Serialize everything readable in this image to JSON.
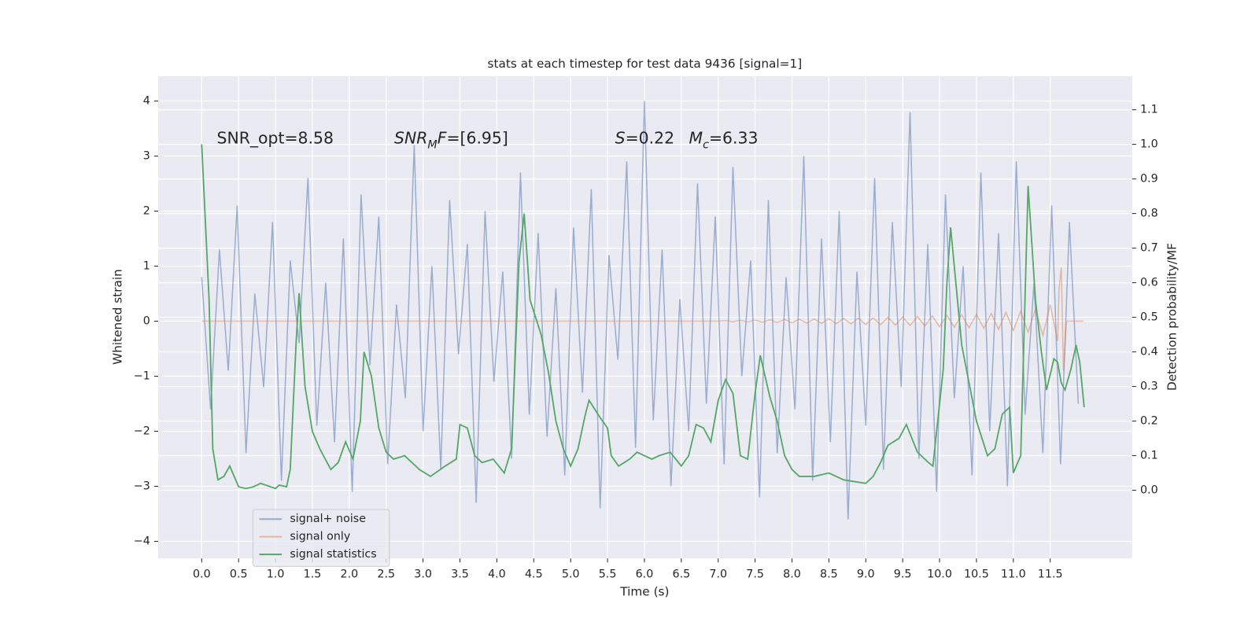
{
  "chart_data": {
    "type": "line",
    "title": "stats at each timestep for test data 9436 [signal=1]",
    "xlabel": "Time (s)",
    "ylabel": "Whitened strain",
    "y2label": "Detection probability/MF",
    "annotations": [
      [
        {
          "text": "SNR_opt=8.58"
        }
      ],
      [
        {
          "text": "SNR",
          "italic": true
        },
        {
          "text": "M",
          "italic": true,
          "sub": true
        },
        {
          "text": "F",
          "italic": true
        },
        {
          "text": "=[6.95]"
        }
      ],
      [
        {
          "text": "S",
          "italic": true
        },
        {
          "text": "=0.22"
        }
      ],
      [
        {
          "text": "M",
          "italic": true
        },
        {
          "text": "c",
          "italic": true,
          "sub": true
        },
        {
          "text": "=6.33"
        }
      ]
    ],
    "xlim": [
      -0.59,
      12.61
    ],
    "ylim": [
      -4.31,
      4.45
    ],
    "y2lim": [
      -0.197,
      1.197
    ],
    "xticks": [
      {
        "value": 0,
        "label": "0.0"
      },
      0.5,
      {
        "value": 1,
        "label": "1.0"
      },
      1.5,
      {
        "value": 2,
        "label": "2.0"
      },
      2.5,
      {
        "value": 3,
        "label": "3.0"
      },
      3.5,
      {
        "value": 4,
        "label": "4.0"
      },
      4.5,
      {
        "value": 5,
        "label": "5.0"
      },
      5.5,
      {
        "value": 6,
        "label": "6.0"
      },
      6.5,
      {
        "value": 7,
        "label": "7.0"
      },
      7.5,
      {
        "value": 8,
        "label": "8.0"
      },
      8.5,
      {
        "value": 9,
        "label": "9.0"
      },
      9.5,
      {
        "value": 10,
        "label": "10.0"
      },
      10.5,
      {
        "value": 11,
        "label": "11.0"
      },
      11.5
    ],
    "yticks": [
      {
        "value": -4,
        "label": "−4"
      },
      {
        "value": -3,
        "label": "−3"
      },
      {
        "value": -2,
        "label": "−2"
      },
      {
        "value": -1,
        "label": "−1"
      },
      0,
      1,
      2,
      3,
      4
    ],
    "y2ticks": [
      {
        "value": 0,
        "label": "0.0"
      },
      0.1,
      0.2,
      0.3,
      0.4,
      0.5,
      0.6,
      0.7,
      0.8,
      0.9,
      {
        "value": 1,
        "label": "1.0"
      },
      1.1
    ],
    "grid": true,
    "legend": "lower left",
    "series": [
      {
        "name": "signal+ noise",
        "color": "#4c72b0",
        "opacity": 0.5,
        "x": [
          0,
          0.12,
          0.24,
          0.36,
          0.48,
          0.6,
          0.72,
          0.84,
          0.96,
          1.08,
          1.2,
          1.32,
          1.44,
          1.56,
          1.68,
          1.8,
          1.92,
          2.04,
          2.16,
          2.28,
          2.4,
          2.52,
          2.64,
          2.76,
          2.88,
          3,
          3.12,
          3.24,
          3.36,
          3.48,
          3.6,
          3.72,
          3.84,
          3.96,
          4.08,
          4.2,
          4.32,
          4.44,
          4.56,
          4.68,
          4.8,
          4.92,
          5.04,
          5.16,
          5.28,
          5.4,
          5.52,
          5.64,
          5.76,
          5.88,
          6,
          6.12,
          6.24,
          6.36,
          6.48,
          6.6,
          6.72,
          6.84,
          6.96,
          7.08,
          7.2,
          7.32,
          7.44,
          7.56,
          7.68,
          7.8,
          7.92,
          8.04,
          8.16,
          8.28,
          8.4,
          8.52,
          8.64,
          8.76,
          8.88,
          9,
          9.12,
          9.24,
          9.36,
          9.48,
          9.6,
          9.72,
          9.84,
          9.96,
          10.08,
          10.2,
          10.32,
          10.44,
          10.56,
          10.68,
          10.8,
          10.92,
          11.04,
          11.16,
          11.28,
          11.4,
          11.52,
          11.64,
          11.76,
          11.88
        ],
        "values": [
          0.8,
          -1.6,
          1.3,
          -0.9,
          2.1,
          -2.4,
          0.5,
          -1.2,
          1.8,
          -2.9,
          1.1,
          -0.4,
          2.6,
          -1.9,
          0.7,
          -2.2,
          1.5,
          -3.1,
          2.3,
          -0.8,
          1.9,
          -2.6,
          0.3,
          -1.4,
          3.2,
          -2.0,
          1.0,
          -2.7,
          2.2,
          -0.6,
          1.4,
          -3.3,
          2.0,
          -1.1,
          0.9,
          -2.5,
          2.7,
          -1.7,
          1.6,
          -2.1,
          0.6,
          -2.8,
          1.7,
          -1.3,
          2.4,
          -3.4,
          1.2,
          -0.7,
          2.9,
          -2.3,
          4.0,
          -1.8,
          1.3,
          -3.0,
          0.4,
          -2.0,
          2.5,
          -1.5,
          1.9,
          -2.6,
          2.8,
          -1.0,
          1.1,
          -3.2,
          2.2,
          -2.4,
          0.8,
          -1.6,
          3.0,
          -2.9,
          1.5,
          -2.2,
          2.0,
          -3.6,
          0.9,
          -1.9,
          2.6,
          -2.7,
          1.8,
          -1.2,
          3.8,
          -2.5,
          1.4,
          -3.1,
          2.3,
          -1.4,
          1.0,
          -2.8,
          2.7,
          -2.0,
          1.6,
          -3.0,
          2.9,
          -1.7,
          0.7,
          -2.4,
          2.1,
          -2.6,
          1.8,
          -1.5
        ]
      },
      {
        "name": "signal only",
        "color": "#dd8452",
        "opacity": 0.5,
        "x": [
          0,
          7.0,
          7.1,
          7.2,
          7.3,
          7.4,
          7.5,
          7.6,
          7.7,
          7.8,
          7.9,
          8.0,
          8.1,
          8.2,
          8.3,
          8.4,
          8.5,
          8.6,
          8.7,
          8.8,
          8.9,
          9.0,
          9.1,
          9.2,
          9.3,
          9.4,
          9.5,
          9.6,
          9.7,
          9.8,
          9.9,
          10.0,
          10.1,
          10.2,
          10.3,
          10.4,
          10.5,
          10.6,
          10.7,
          10.8,
          10.9,
          11.0,
          11.1,
          11.2,
          11.3,
          11.4,
          11.5,
          11.6,
          11.62,
          11.65,
          11.68,
          11.72,
          11.95
        ],
        "values": [
          0,
          0,
          0.01,
          -0.01,
          0.015,
          -0.015,
          0.02,
          -0.02,
          0.025,
          -0.025,
          0.03,
          -0.03,
          0.035,
          -0.035,
          0.04,
          -0.04,
          0.045,
          -0.045,
          0.05,
          -0.05,
          0.055,
          -0.06,
          0.06,
          -0.065,
          0.07,
          -0.07,
          0.075,
          -0.08,
          0.085,
          -0.09,
          0.095,
          -0.1,
          0.105,
          -0.11,
          0.115,
          -0.12,
          0.125,
          -0.13,
          0.14,
          -0.15,
          0.16,
          -0.17,
          0.18,
          -0.2,
          0.22,
          -0.26,
          0.3,
          -0.36,
          0.6,
          0.97,
          -0.9,
          0,
          0
        ]
      },
      {
        "name": "signal statistics",
        "color": "#55a868",
        "opacity": 1,
        "axis": "y2",
        "x": [
          0,
          0.1,
          0.15,
          0.22,
          0.3,
          0.38,
          0.5,
          0.6,
          0.7,
          0.8,
          1.0,
          1.05,
          1.15,
          1.2,
          1.28,
          1.32,
          1.4,
          1.5,
          1.6,
          1.75,
          1.85,
          1.95,
          2.05,
          2.15,
          2.2,
          2.3,
          2.4,
          2.5,
          2.6,
          2.75,
          2.95,
          3.1,
          3.3,
          3.45,
          3.5,
          3.6,
          3.7,
          3.8,
          3.95,
          4.1,
          4.2,
          4.3,
          4.37,
          4.45,
          4.6,
          4.7,
          4.8,
          4.9,
          5.0,
          5.1,
          5.2,
          5.25,
          5.4,
          5.5,
          5.55,
          5.65,
          5.8,
          5.9,
          6.1,
          6.2,
          6.35,
          6.5,
          6.6,
          6.7,
          6.8,
          6.9,
          7.0,
          7.1,
          7.2,
          7.3,
          7.4,
          7.5,
          7.57,
          7.7,
          7.8,
          7.9,
          8.0,
          8.1,
          8.3,
          8.5,
          8.7,
          9.0,
          9.1,
          9.2,
          9.3,
          9.45,
          9.55,
          9.7,
          9.85,
          9.91,
          10.05,
          10.1,
          10.15,
          10.3,
          10.5,
          10.65,
          10.75,
          10.85,
          10.95,
          11.0,
          11.1,
          11.2,
          11.3,
          11.38,
          11.45,
          11.55,
          11.6,
          11.65,
          11.7,
          11.78,
          11.85,
          11.9,
          11.96
        ],
        "values": [
          1.0,
          0.55,
          0.12,
          0.03,
          0.04,
          0.07,
          0.01,
          0.005,
          0.01,
          0.02,
          0.005,
          0.015,
          0.01,
          0.06,
          0.43,
          0.57,
          0.3,
          0.17,
          0.12,
          0.06,
          0.08,
          0.14,
          0.09,
          0.2,
          0.4,
          0.33,
          0.18,
          0.11,
          0.09,
          0.1,
          0.06,
          0.04,
          0.07,
          0.09,
          0.19,
          0.18,
          0.1,
          0.08,
          0.09,
          0.05,
          0.12,
          0.66,
          0.8,
          0.55,
          0.45,
          0.34,
          0.2,
          0.12,
          0.07,
          0.12,
          0.22,
          0.26,
          0.21,
          0.18,
          0.1,
          0.07,
          0.09,
          0.11,
          0.09,
          0.1,
          0.11,
          0.07,
          0.1,
          0.19,
          0.18,
          0.14,
          0.26,
          0.32,
          0.28,
          0.1,
          0.09,
          0.28,
          0.39,
          0.27,
          0.2,
          0.1,
          0.06,
          0.04,
          0.04,
          0.05,
          0.03,
          0.02,
          0.04,
          0.08,
          0.13,
          0.15,
          0.19,
          0.11,
          0.08,
          0.07,
          0.35,
          0.6,
          0.76,
          0.42,
          0.2,
          0.1,
          0.12,
          0.22,
          0.24,
          0.05,
          0.1,
          0.88,
          0.55,
          0.4,
          0.29,
          0.38,
          0.37,
          0.31,
          0.29,
          0.35,
          0.42,
          0.37,
          0.24
        ]
      }
    ]
  }
}
